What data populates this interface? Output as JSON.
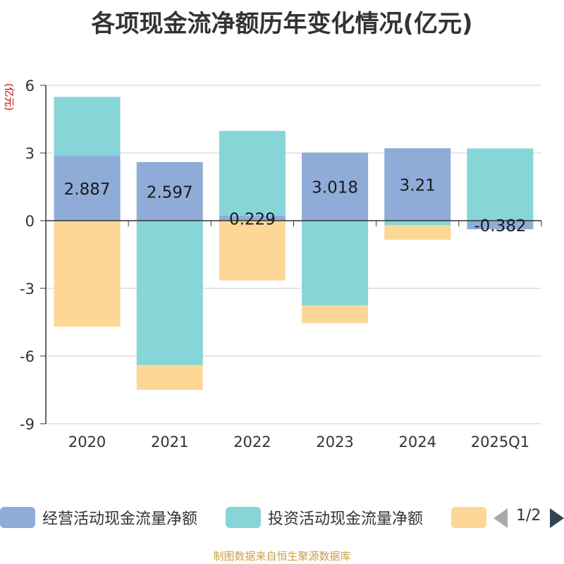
{
  "chart_data": {
    "type": "bar",
    "stacked": true,
    "title": "各项现金流净额历年变化情况(亿元)",
    "ylabel": "(亿元)",
    "xlabel": "",
    "categories": [
      "2020",
      "2021",
      "2022",
      "2023",
      "2024",
      "2025Q1"
    ],
    "ylim": [
      -9,
      6
    ],
    "yticks": [
      6,
      3,
      0,
      -3,
      -6,
      -9
    ],
    "grid": true,
    "legend_position": "bottom",
    "series": [
      {
        "name": "经营活动现金流量净额",
        "color": "#8facd8",
        "values": [
          2.887,
          2.597,
          0.229,
          3.018,
          3.21,
          -0.382
        ],
        "data_labels": [
          "2.887",
          "2.597",
          "0.229",
          "3.018",
          "3.21",
          "-0.382"
        ]
      },
      {
        "name": "投资活动现金流量净额",
        "color": "#86d5d7",
        "values": [
          2.6,
          -6.4,
          3.75,
          -3.75,
          -0.2,
          3.2
        ]
      },
      {
        "name": "",
        "color": "#fdd796",
        "values": [
          -4.7,
          -1.1,
          -2.65,
          -0.8,
          -0.65,
          0
        ]
      }
    ]
  },
  "legend": {
    "page_indicator": "1/2"
  },
  "source": "制图数据来自恒生聚源数据库"
}
